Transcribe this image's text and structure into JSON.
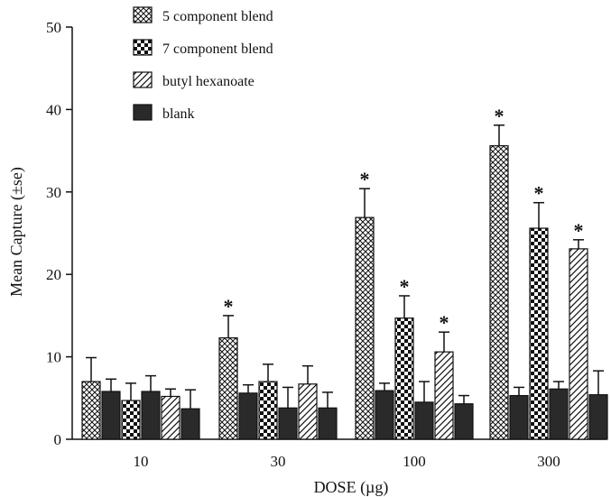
{
  "chart_data": {
    "type": "bar",
    "title": "",
    "xlabel": "DOSE (µg)",
    "ylabel": "Mean Capture (±se)",
    "ylim": [
      0,
      50
    ],
    "yticks": [
      0,
      10,
      20,
      30,
      40,
      50
    ],
    "categories": [
      "10",
      "30",
      "100",
      "300"
    ],
    "grid": false,
    "legend_position": "top-left",
    "error_bars": true,
    "significance_marker": "*",
    "pattern_colors": {
      "ink": "#111111",
      "fill": "#ffffff"
    },
    "series": [
      {
        "name": "5 component blend",
        "pattern": "crosshatch",
        "values": [
          7.0,
          12.3,
          26.9,
          35.6
        ],
        "errors": [
          2.9,
          2.7,
          3.5,
          2.5
        ],
        "significant": [
          false,
          true,
          true,
          true
        ]
      },
      {
        "name": "7 component blend",
        "pattern": "checker",
        "values": [
          4.7,
          7.0,
          14.7,
          25.6
        ],
        "errors": [
          2.1,
          2.1,
          2.7,
          3.1
        ],
        "significant": [
          false,
          false,
          true,
          true
        ]
      },
      {
        "name": "butyl hexanoate",
        "pattern": "diagonal",
        "values": [
          5.2,
          6.7,
          10.6,
          23.1
        ],
        "errors": [
          0.9,
          2.2,
          2.4,
          1.1
        ],
        "significant": [
          false,
          false,
          true,
          true
        ]
      },
      {
        "name": "blank",
        "pattern": "solid",
        "values": [
          5.8,
          5.6,
          5.9,
          5.3
        ],
        "errors": [
          1.4,
          1.0,
          0.9,
          1.0
        ],
        "significant": [
          false,
          false,
          false,
          false
        ]
      }
    ],
    "blank_bars_per_dose": [
      {
        "dose": "10",
        "values": [
          5.8,
          5.8,
          3.7
        ],
        "errors": [
          1.5,
          1.9,
          2.3
        ]
      },
      {
        "dose": "30",
        "values": [
          5.6,
          3.8,
          3.8
        ],
        "errors": [
          1.0,
          2.5,
          1.9
        ]
      },
      {
        "dose": "100",
        "values": [
          5.9,
          4.5,
          4.3
        ],
        "errors": [
          0.9,
          2.5,
          1.0
        ]
      },
      {
        "dose": "300",
        "values": [
          5.3,
          6.1,
          5.4
        ],
        "errors": [
          1.0,
          0.9,
          2.9
        ]
      }
    ]
  }
}
